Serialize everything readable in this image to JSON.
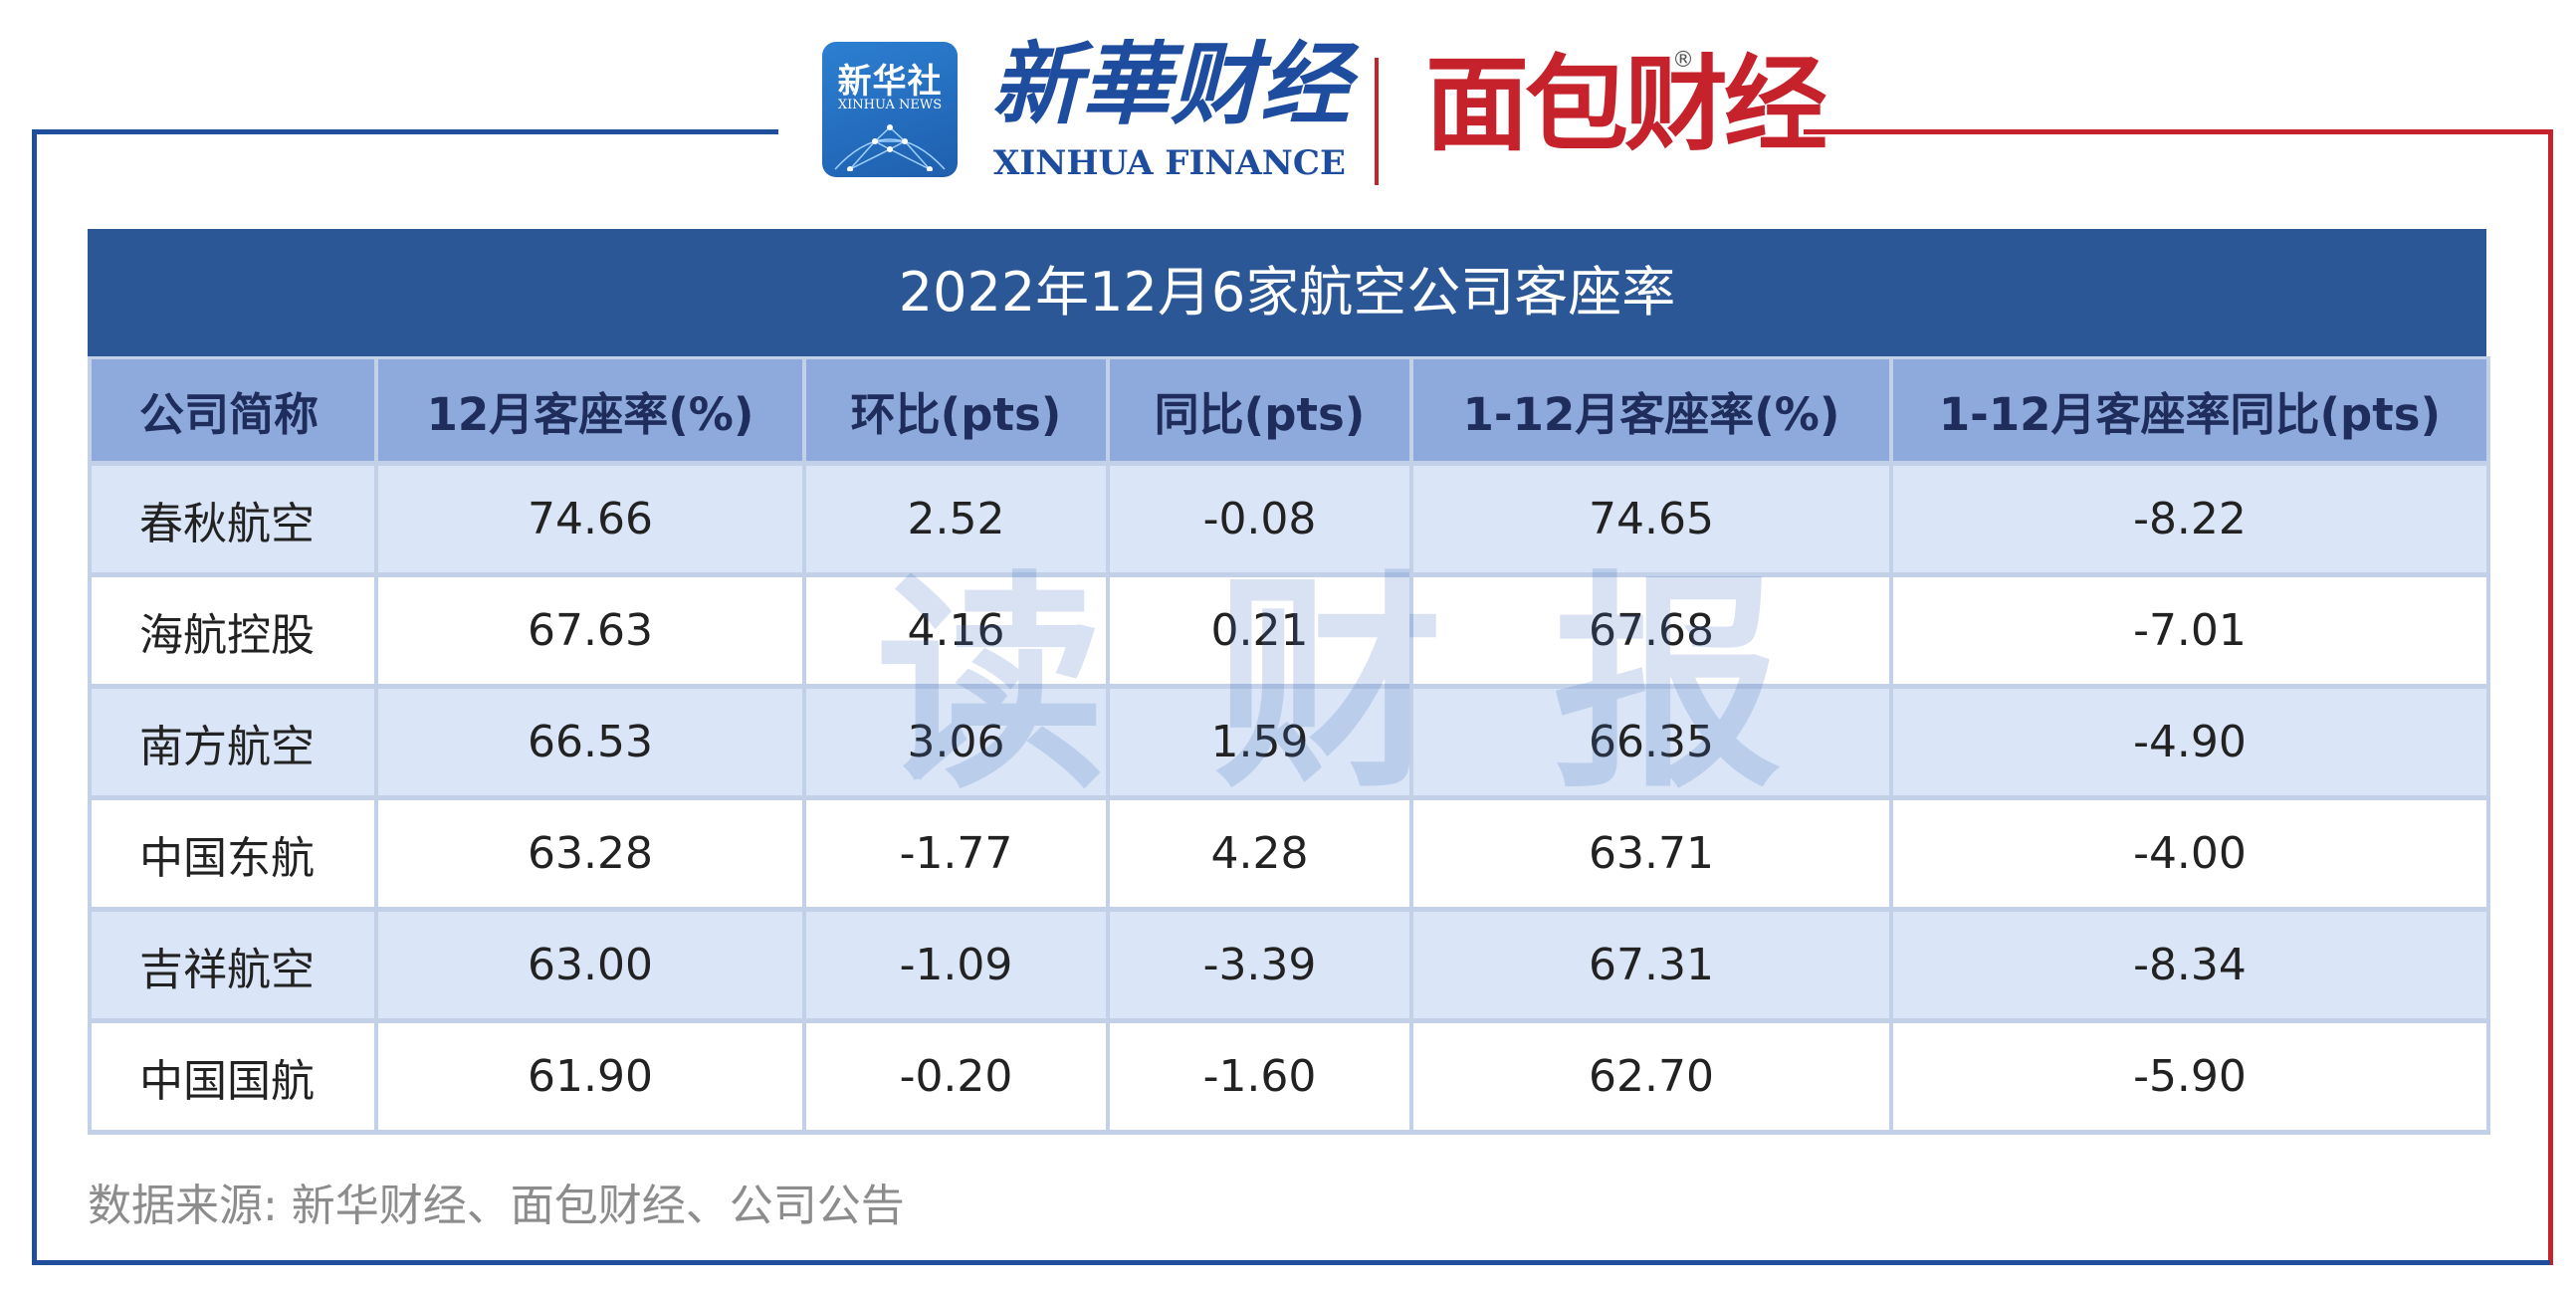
{
  "header": {
    "badge_zh": "新华社",
    "badge_en": "XINHUA NEWS",
    "brand_zh": "新華财经",
    "brand_en": "XINHUA FINANCE",
    "partner": "面包财经",
    "partner_mark": "®",
    "colors": {
      "blue": "#1e4da0",
      "red": "#c5222b"
    }
  },
  "watermark": "读财报",
  "chart_data": {
    "type": "table",
    "title": "2022年12月6家航空公司客座率",
    "columns": [
      "公司简称",
      "12月客座率(%)",
      "环比(pts)",
      "同比(pts)",
      "1-12月客座率(%)",
      "1-12月客座率同比(pts)"
    ],
    "rows": [
      [
        "春秋航空",
        "74.66",
        "2.52",
        "-0.08",
        "74.65",
        "-8.22"
      ],
      [
        "海航控股",
        "67.63",
        "4.16",
        "0.21",
        "67.68",
        "-7.01"
      ],
      [
        "南方航空",
        "66.53",
        "3.06",
        "1.59",
        "66.35",
        "-4.90"
      ],
      [
        "中国东航",
        "63.28",
        "-1.77",
        "4.28",
        "63.71",
        "-4.00"
      ],
      [
        "吉祥航空",
        "63.00",
        "-1.09",
        "-3.39",
        "67.31",
        "-8.34"
      ],
      [
        "中国国航",
        "61.90",
        "-0.20",
        "-1.60",
        "62.70",
        "-5.90"
      ]
    ],
    "colors": {
      "title_bg": "#2c5797",
      "header_bg": "#8ea9db",
      "row_alt_bg": "#dae5f7"
    }
  },
  "source": "数据来源: 新华财经、面包财经、公司公告"
}
